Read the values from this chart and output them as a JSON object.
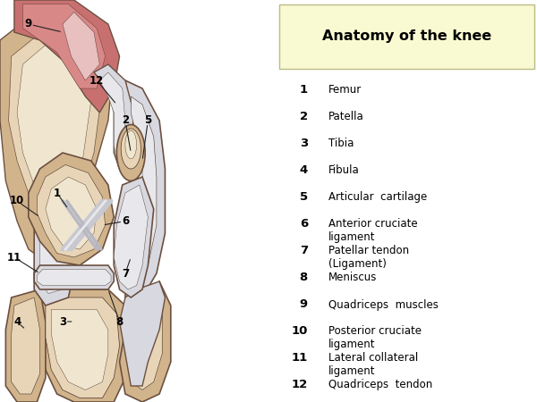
{
  "title": "Anatomy of the knee",
  "title_box_color": "#FAFAD2",
  "background_color": "#FFFFFF",
  "legend_entries": [
    {
      "num": "1",
      "text": "Femur"
    },
    {
      "num": "2",
      "text": "Patella"
    },
    {
      "num": "3",
      "text": "Tibia"
    },
    {
      "num": "4",
      "text": "Fibula"
    },
    {
      "num": "5",
      "text": "Articular  cartilage"
    },
    {
      "num": "6",
      "text": "Anterior cruciate\nligament"
    },
    {
      "num": "7",
      "text": "Patellar tendon\n(Ligament)"
    },
    {
      "num": "8",
      "text": "Meniscus"
    },
    {
      "num": "9",
      "text": "Quadriceps  muscles"
    },
    {
      "num": "10",
      "text": "Posterior cruciate\nligament"
    },
    {
      "num": "11",
      "text": "Lateral collateral\nligament"
    },
    {
      "num": "12",
      "text": "Quadriceps  tendon"
    }
  ],
  "colors": {
    "bone_tan": "#D2B48C",
    "bone_light": "#E8D5B8",
    "bone_cream": "#F0E6D0",
    "bone_dark": "#C4A070",
    "bone_mid": "#DBBF99",
    "muscle_pink": "#C87070",
    "muscle_light": "#D98888",
    "muscle_dark": "#B05060",
    "white_cart": "#E8E8EC",
    "white_dark": "#C8C8D0",
    "white_mid": "#D8D8E0",
    "grey_cart": "#B8B8C4",
    "outline": "#6B5040",
    "outline_dark": "#4A3528",
    "label_line": "#222222"
  }
}
